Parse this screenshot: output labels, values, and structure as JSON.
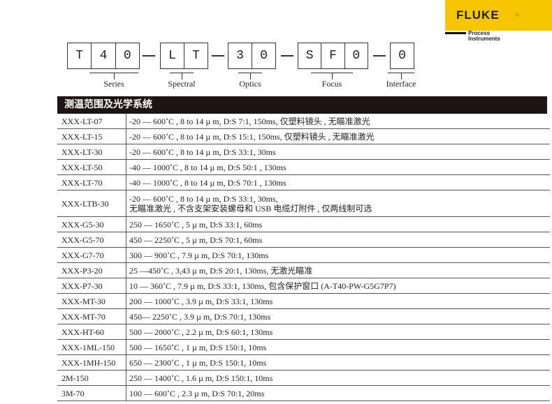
{
  "logo": {
    "brand": "FLUKE",
    "reg": "®",
    "sub1": "Process",
    "sub2": "Instruments"
  },
  "code": {
    "groups": [
      [
        "T",
        "4",
        "0"
      ],
      [
        "L",
        "T"
      ],
      [
        "3",
        "0"
      ],
      [
        "S",
        "F",
        "0"
      ],
      [
        "0"
      ]
    ],
    "labels": [
      "Series",
      "Spectral",
      "Optics",
      "Focus",
      "Interface"
    ]
  },
  "header": "测温范围及光学系统",
  "rows": [
    {
      "model": "XXX-LT-07",
      "spec": "-20 — 600˚C , 8 to 14 µ m, D:S 7:1, 150ms, 仅塑料镜头 , 无瞄准激光"
    },
    {
      "model": "XXX-LT-15",
      "spec": "-20 — 600˚C , 8 to 14 µ m, D:S 15:1, 150ms, 仅塑料镜头 , 无瞄准激光"
    },
    {
      "model": "XXX-LT-30",
      "spec": "-20 — 600˚C , 8 to 14 µ m, D:S 33:1, 30ms"
    },
    {
      "model": "XXX-LT-50",
      "spec": "-40 — 1000˚C , 8 to 14 µ m, D:S 50:1 , 130ms"
    },
    {
      "model": "XXX-LT-70",
      "spec": "-40 — 1000˚C , 8 to 14 µ m, D:S 70:1 , 130ms"
    },
    {
      "model": "XXX-LTB-30",
      "spec": "-20 — 600˚C , 8 to 14 µ m, D:S 33:1, 30ms,",
      "spec2": "无瞄准激光 , 不含支架安装螺母和 USB 电缆灯附件 , 仅两线制可选"
    },
    {
      "model": "XXX-G5-30",
      "spec": "250 — 1650˚C , 5 µ m, D:S 33:1, 60ms"
    },
    {
      "model": "XXX-G5-70",
      "spec": "450 — 2250˚C , 5 µ m, D:S 70:1, 60ms"
    },
    {
      "model": "XXX-G7-70",
      "spec": "300 — 900˚C , 7.9 µ m, D:S 70:1, 130ms"
    },
    {
      "model": "XXX-P3-20",
      "spec": "25 —450˚C , 3,43 µ m, D:S 20:1, 130ms, 无激光瞄准"
    },
    {
      "model": "XXX-P7-30",
      "spec": "10 — 360˚C , 7.9 µ m, D:S 33:1, 130ms, 包含保护窗口 (A-T40-PW-G5G7P7)"
    },
    {
      "model": "XXX-MT-30",
      "spec": "200 — 1000˚C , 3.9 µ m, D:S 33:1, 130ms"
    },
    {
      "model": "XXX-MT-70",
      "spec": "450— 2250˚C , 3.9 µ m, D:S 70:1, 130ms"
    },
    {
      "model": "XXX-HT-60",
      "spec": "500 — 2000˚C , 2.2 µ m, D:S 60:1, 130ms"
    },
    {
      "model": "XXX-1ML-150",
      "spec": "500 — 1650˚C , 1 µ m, D:S 150:1, 10ms"
    },
    {
      "model": "XXX-1MH-150",
      "spec": "650 — 2300˚C , 1 µ m, D:S 150:1, 10ms"
    },
    {
      "model": "2M-150",
      "spec": "250 — 1400˚C , 1.6 µ m, D:S 150:1, 10ms"
    },
    {
      "model": "3M-70",
      "spec": "100 — 600˚C , 2.3 µ m, D:S 70:1, 20ms"
    }
  ]
}
